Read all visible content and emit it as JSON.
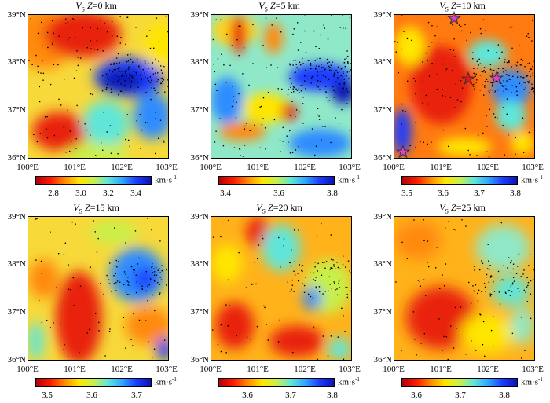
{
  "lat_labels": [
    "39°N",
    "38°N",
    "37°N",
    "36°N"
  ],
  "lon_labels": [
    "100°E",
    "101°E",
    "102°E",
    "103°E"
  ],
  "unit": "km·s",
  "unit_exp": "-1",
  "panels": [
    {
      "var": "V",
      "sub": "S",
      "eq": "Z",
      "depth": "=0 km",
      "ticks": [
        "2.8",
        "3.0",
        "3.2",
        "3.4"
      ]
    },
    {
      "var": "V",
      "sub": "S",
      "eq": "Z",
      "depth": "=5 km",
      "ticks": [
        "3.4",
        "3.6",
        "3.8"
      ]
    },
    {
      "var": "V",
      "sub": "S",
      "eq": "Z",
      "depth": "=10 km",
      "ticks": [
        "3.5",
        "3.6",
        "3.7",
        "3.8"
      ]
    },
    {
      "var": "V",
      "sub": "S",
      "eq": "Z",
      "depth": "=15 km",
      "ticks": [
        "3.5",
        "3.6",
        "3.7"
      ]
    },
    {
      "var": "V",
      "sub": "S",
      "eq": "Z",
      "depth": "=20 km",
      "ticks": [
        "3.6",
        "3.7",
        "3.8"
      ]
    },
    {
      "var": "V",
      "sub": "S",
      "eq": "Z",
      "depth": "=25 km",
      "ticks": [
        "3.6",
        "3.7",
        "3.8"
      ]
    }
  ],
  "colors": {
    "red": "#e8000b",
    "orange": "#ff9a00",
    "yellow": "#ffe600",
    "cyan": "#5fe6d9",
    "blue": "#1c3cff",
    "star_magenta": "#e040c8",
    "star_red": "#e8141e"
  },
  "icons": [
    "star-icon"
  ]
}
